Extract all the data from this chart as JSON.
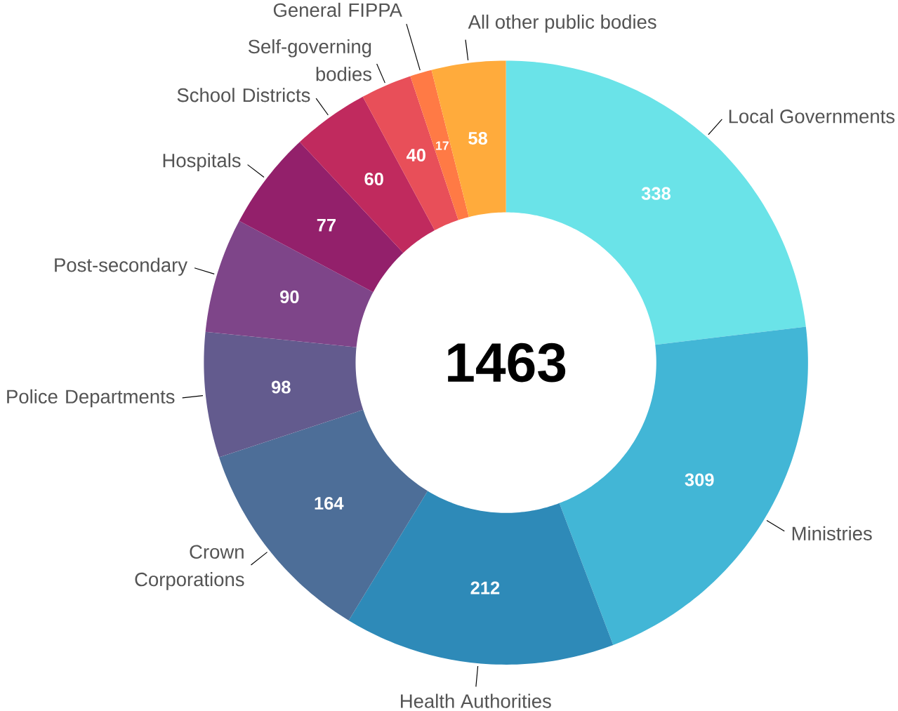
{
  "chart_data": {
    "type": "donut",
    "categories": [
      "Local Governments",
      "Ministries",
      "Health Authorities",
      "Crown Corporations",
      "Police Departments",
      "Post-secondary",
      "Hospitals",
      "School Districts",
      "Self-governing bodies",
      "General FIPPA",
      "All other public bodies"
    ],
    "values": [
      338,
      309,
      212,
      164,
      98,
      90,
      77,
      60,
      40,
      17,
      58
    ],
    "colors": [
      "#6ae3e8",
      "#42b6d6",
      "#2e8ab8",
      "#4d6e98",
      "#635b8e",
      "#7e4589",
      "#93206b",
      "#c02a5e",
      "#e84f59",
      "#ff7a45",
      "#ffab3c"
    ],
    "data_labels": true,
    "annotations": [
      "1463"
    ]
  }
}
